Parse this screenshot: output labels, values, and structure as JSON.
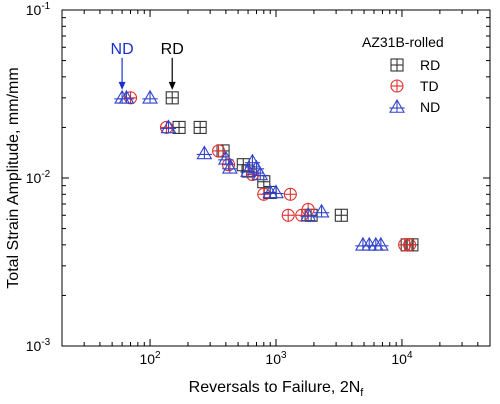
{
  "chart_data": {
    "type": "scatter",
    "xlabel": "Reversals to Failure, 2N",
    "xlabel_sub": "f",
    "ylabel": "Total Strain Amplitude, mm/mm",
    "xscale": "log",
    "yscale": "log",
    "xlim": [
      20,
      50000
    ],
    "ylim": [
      0.001,
      0.1
    ],
    "x_ticks": [
      {
        "value": 100,
        "base": "10",
        "exp": "2"
      },
      {
        "value": 1000,
        "base": "10",
        "exp": "3"
      },
      {
        "value": 10000,
        "base": "10",
        "exp": "4"
      }
    ],
    "y_ticks": [
      {
        "value": 0.001,
        "base": "10",
        "exp": "-3"
      },
      {
        "value": 0.01,
        "base": "10",
        "exp": "-2"
      },
      {
        "value": 0.1,
        "base": "10",
        "exp": "-1"
      }
    ],
    "legend_title": "AZ31B-rolled",
    "legend_position": "top-right",
    "series": [
      {
        "name": "RD",
        "marker": "boxplus",
        "color": "#333333",
        "points": [
          [
            150,
            0.03
          ],
          [
            170,
            0.02
          ],
          [
            250,
            0.02
          ],
          [
            380,
            0.0145
          ],
          [
            550,
            0.012
          ],
          [
            600,
            0.011
          ],
          [
            800,
            0.0095
          ],
          [
            900,
            0.0082
          ],
          [
            1900,
            0.006
          ],
          [
            3300,
            0.006
          ],
          [
            11000,
            0.004
          ],
          [
            12000,
            0.004
          ]
        ]
      },
      {
        "name": "TD",
        "marker": "circleplus",
        "color": "#e0302c",
        "points": [
          [
            70,
            0.03
          ],
          [
            135,
            0.02
          ],
          [
            350,
            0.0145
          ],
          [
            420,
            0.012
          ],
          [
            650,
            0.0105
          ],
          [
            800,
            0.008
          ],
          [
            1300,
            0.008
          ],
          [
            1250,
            0.006
          ],
          [
            1600,
            0.006
          ],
          [
            1800,
            0.0065
          ],
          [
            10500,
            0.004
          ],
          [
            11500,
            0.004
          ]
        ]
      },
      {
        "name": "ND",
        "marker": "triangleplus",
        "color": "#3344cc",
        "points": [
          [
            60,
            0.03
          ],
          [
            65,
            0.03
          ],
          [
            100,
            0.03
          ],
          [
            140,
            0.02
          ],
          [
            270,
            0.014
          ],
          [
            400,
            0.013
          ],
          [
            430,
            0.0115
          ],
          [
            600,
            0.011
          ],
          [
            650,
            0.0125
          ],
          [
            700,
            0.0115
          ],
          [
            750,
            0.0105
          ],
          [
            900,
            0.0082
          ],
          [
            1000,
            0.0082
          ],
          [
            1800,
            0.006
          ],
          [
            2300,
            0.0063
          ],
          [
            4900,
            0.004
          ],
          [
            5500,
            0.004
          ],
          [
            6200,
            0.004
          ],
          [
            6800,
            0.004
          ]
        ]
      }
    ],
    "annotations": [
      {
        "text": "ND",
        "color": "#1a2fd0",
        "arrow_to": [
          60,
          0.03
        ]
      },
      {
        "text": "RD",
        "color": "#000000",
        "arrow_to": [
          150,
          0.03
        ]
      }
    ]
  }
}
